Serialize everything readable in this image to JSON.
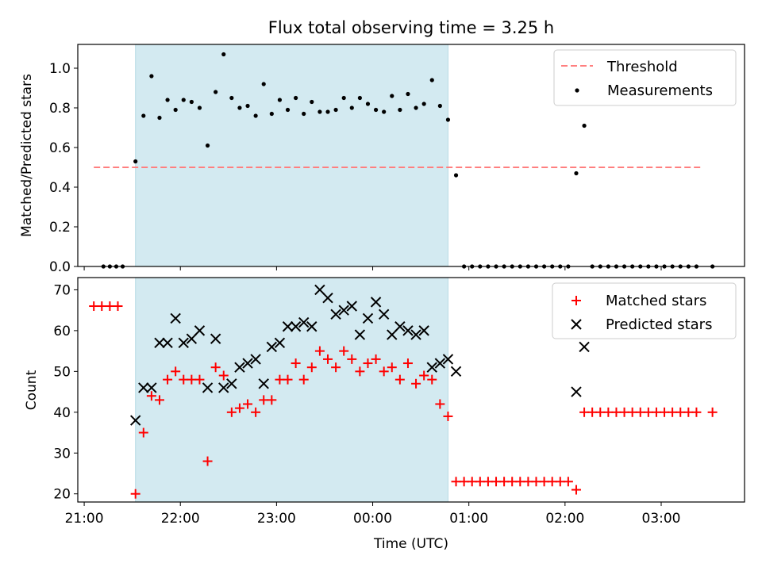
{
  "chart_data": [
    {
      "type": "scatter",
      "title": "Flux total observing time = 3.25 h",
      "ylabel": "Matched/Predicted stars",
      "xlabel": "",
      "ylim": [
        0,
        1.12
      ],
      "xlim": [
        "20:56",
        "03:52"
      ],
      "yticks": [
        0.0,
        0.2,
        0.4,
        0.6,
        0.8,
        1.0
      ],
      "ytick_labels": [
        "0.0",
        "0.2",
        "0.4",
        "0.6",
        "0.8",
        "1.0"
      ],
      "shaded_region": {
        "start": "21:32",
        "end": "00:47",
        "color": "#d3eaf1"
      },
      "legend_placement": "upper-right",
      "grid": false,
      "series": [
        {
          "name": "Threshold",
          "kind": "dashed-line",
          "color": "#ff7f7f",
          "x": [
            "21:06",
            "03:26"
          ],
          "values": [
            0.5,
            0.5
          ]
        },
        {
          "name": "Measurements",
          "kind": "dot",
          "color": "#000000",
          "x": [
            "21:12",
            "21:16",
            "21:20",
            "21:24",
            "21:32",
            "21:37",
            "21:42",
            "21:47",
            "21:52",
            "21:57",
            "22:02",
            "22:07",
            "22:12",
            "22:17",
            "22:22",
            "22:27",
            "22:32",
            "22:37",
            "22:42",
            "22:47",
            "22:52",
            "22:57",
            "23:02",
            "23:07",
            "23:12",
            "23:17",
            "23:22",
            "23:27",
            "23:32",
            "23:37",
            "23:42",
            "23:47",
            "23:52",
            "23:57",
            "00:02",
            "00:07",
            "00:12",
            "00:17",
            "00:22",
            "00:27",
            "00:32",
            "00:37",
            "00:42",
            "00:47",
            "00:52",
            "00:57",
            "01:02",
            "01:07",
            "01:12",
            "01:17",
            "01:22",
            "01:27",
            "01:32",
            "01:37",
            "01:42",
            "01:47",
            "01:52",
            "01:57",
            "02:02",
            "02:07",
            "02:12",
            "02:17",
            "02:22",
            "02:27",
            "02:32",
            "02:37",
            "02:42",
            "02:47",
            "02:52",
            "02:57",
            "03:02",
            "03:07",
            "03:12",
            "03:17",
            "03:22",
            "03:32"
          ],
          "values": [
            0,
            0,
            0,
            0,
            0.53,
            0.76,
            0.96,
            0.75,
            0.84,
            0.79,
            0.84,
            0.83,
            0.8,
            0.61,
            0.88,
            1.07,
            0.85,
            0.8,
            0.81,
            0.76,
            0.92,
            0.77,
            0.84,
            0.79,
            0.85,
            0.77,
            0.83,
            0.78,
            0.78,
            0.79,
            0.85,
            0.8,
            0.85,
            0.82,
            0.79,
            0.78,
            0.86,
            0.79,
            0.87,
            0.8,
            0.82,
            0.94,
            0.81,
            0.74,
            0.46,
            0,
            0,
            0,
            0,
            0,
            0,
            0,
            0,
            0,
            0,
            0,
            0,
            0,
            0,
            0.47,
            0.71,
            0,
            0,
            0,
            0,
            0,
            0,
            0,
            0,
            0,
            0,
            0,
            0,
            0,
            0,
            0
          ]
        }
      ]
    },
    {
      "type": "scatter",
      "title": "",
      "ylabel": "Count",
      "xlabel": "Time (UTC)",
      "ylim": [
        18,
        73
      ],
      "xlim": [
        "20:56",
        "03:52"
      ],
      "yticks": [
        20,
        30,
        40,
        50,
        60,
        70
      ],
      "ytick_labels": [
        "20",
        "30",
        "40",
        "50",
        "60",
        "70"
      ],
      "xticks": [
        "21:00",
        "22:00",
        "23:00",
        "00:00",
        "01:00",
        "02:00",
        "03:00"
      ],
      "xtick_labels": [
        "21:00",
        "22:00",
        "23:00",
        "00:00",
        "01:00",
        "02:00",
        "03:00"
      ],
      "shaded_region": {
        "start": "21:32",
        "end": "00:47",
        "color": "#d3eaf1"
      },
      "legend_placement": "upper-right",
      "grid": false,
      "series": [
        {
          "name": "Matched stars",
          "kind": "plus",
          "color": "#ff0000",
          "x": [
            "21:06",
            "21:11",
            "21:16",
            "21:21",
            "21:32",
            "21:37",
            "21:42",
            "21:47",
            "21:52",
            "21:57",
            "22:02",
            "22:07",
            "22:12",
            "22:17",
            "22:22",
            "22:27",
            "22:32",
            "22:37",
            "22:42",
            "22:47",
            "22:52",
            "22:57",
            "23:02",
            "23:07",
            "23:12",
            "23:17",
            "23:22",
            "23:27",
            "23:32",
            "23:37",
            "23:42",
            "23:47",
            "23:52",
            "23:57",
            "00:02",
            "00:07",
            "00:12",
            "00:17",
            "00:22",
            "00:27",
            "00:32",
            "00:37",
            "00:42",
            "00:47",
            "00:52",
            "00:57",
            "01:02",
            "01:07",
            "01:12",
            "01:17",
            "01:22",
            "01:27",
            "01:32",
            "01:37",
            "01:42",
            "01:47",
            "01:52",
            "01:57",
            "02:02",
            "02:07",
            "02:12",
            "02:17",
            "02:22",
            "02:27",
            "02:32",
            "02:37",
            "02:42",
            "02:47",
            "02:52",
            "02:57",
            "03:02",
            "03:07",
            "03:12",
            "03:17",
            "03:22",
            "03:32"
          ],
          "values": [
            66,
            66,
            66,
            66,
            20,
            35,
            44,
            43,
            48,
            50,
            48,
            48,
            48,
            28,
            51,
            49,
            40,
            41,
            42,
            40,
            43,
            43,
            48,
            48,
            52,
            48,
            51,
            55,
            53,
            51,
            55,
            53,
            50,
            52,
            53,
            50,
            51,
            48,
            52,
            47,
            49,
            48,
            42,
            39,
            23,
            23,
            23,
            23,
            23,
            23,
            23,
            23,
            23,
            23,
            23,
            23,
            23,
            23,
            23,
            21,
            40,
            40,
            40,
            40,
            40,
            40,
            40,
            40,
            40,
            40,
            40,
            40,
            40,
            40,
            40,
            40
          ]
        },
        {
          "name": "Predicted stars",
          "kind": "cross",
          "color": "#000000",
          "x": [
            "21:32",
            "21:37",
            "21:42",
            "21:47",
            "21:52",
            "21:57",
            "22:02",
            "22:07",
            "22:12",
            "22:17",
            "22:22",
            "22:27",
            "22:32",
            "22:37",
            "22:42",
            "22:47",
            "22:52",
            "22:57",
            "23:02",
            "23:07",
            "23:12",
            "23:17",
            "23:22",
            "23:27",
            "23:32",
            "23:37",
            "23:42",
            "23:47",
            "23:52",
            "23:57",
            "00:02",
            "00:07",
            "00:12",
            "00:17",
            "00:22",
            "00:27",
            "00:32",
            "00:37",
            "00:42",
            "00:47",
            "00:52",
            "02:07",
            "02:12"
          ],
          "values": [
            38,
            46,
            46,
            57,
            57,
            63,
            57,
            58,
            60,
            46,
            58,
            46,
            47,
            51,
            52,
            53,
            47,
            56,
            57,
            61,
            61,
            62,
            61,
            70,
            68,
            64,
            65,
            66,
            59,
            63,
            67,
            64,
            59,
            61,
            60,
            59,
            60,
            51,
            52,
            53,
            50,
            45,
            56
          ]
        }
      ]
    }
  ]
}
